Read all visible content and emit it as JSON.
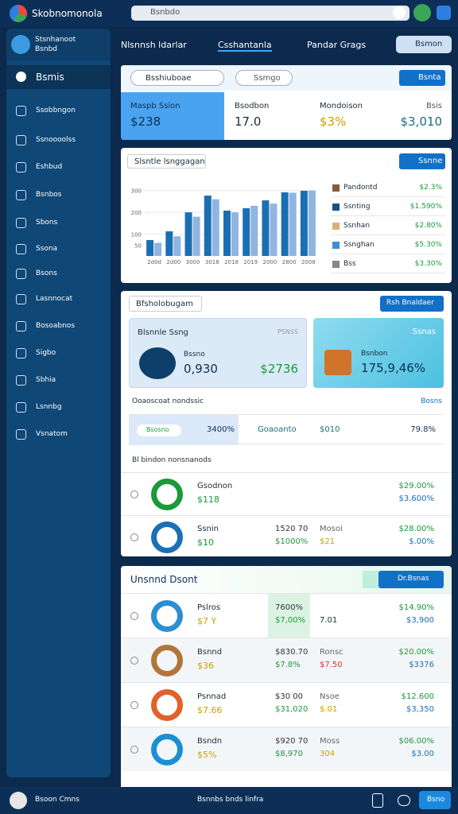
{
  "topbar": {
    "app_name": "Skobnomonola",
    "search": "Bsnbdo"
  },
  "sidebar": {
    "header": [
      "Stsnhanoot",
      "Bsnbd"
    ],
    "items": [
      "Bsmis",
      "Ssobbngon",
      "Ssnoooolss",
      "Eshbud",
      "Bsnbos",
      "Sbons",
      "Ssona",
      "Bsons",
      "Lasnnocat",
      "Bosoabnos",
      "Sigbo",
      "Sbhia",
      "Lsnnbg",
      "Vsnatom"
    ]
  },
  "tabs": {
    "items": [
      "Nlsnnsh ldarlar",
      "Csshantanla",
      "Pandar Grags"
    ],
    "button": "Bsmon"
  },
  "summary": {
    "filter": "Bsshiuboae",
    "select": "Ssmgo",
    "button": "Bsnta",
    "stats": [
      {
        "label": "Maspb Ssion",
        "value": "$238"
      },
      {
        "label": "Bsodbon",
        "value": "17.0"
      },
      {
        "label": "Mondoison",
        "value": "$3%"
      },
      {
        "label": "Bsis",
        "value": "$3,010"
      }
    ]
  },
  "chart_card": {
    "title": "Slsntle lsnggagan",
    "button": "Ssnne",
    "legend": [
      {
        "label": "Pandontd",
        "value": "$2.3%"
      },
      {
        "label": "Ssnting",
        "value": "$1.590%"
      },
      {
        "label": "Ssnhan",
        "value": "$2.80%"
      },
      {
        "label": "Ssnghan",
        "value": "$5.30%"
      },
      {
        "label": "Bss",
        "value": "$3.30%"
      }
    ]
  },
  "chart_data": {
    "type": "bar",
    "categories": [
      "2d0d",
      "2d00",
      "3000",
      "3018",
      "2018",
      "2019",
      "2000",
      "2800",
      "2008"
    ],
    "series": [
      {
        "color": "#1a6fb3",
        "values": [
          73,
          113,
          200,
          277,
          208,
          219,
          255,
          292,
          299
        ]
      },
      {
        "color": "#8fb5e0",
        "values": [
          60,
          90,
          180,
          260,
          200,
          230,
          240,
          290,
          300
        ]
      }
    ],
    "ylim": [
      0,
      350
    ],
    "yticks": [
      50,
      100,
      200,
      300
    ],
    "grid": true
  },
  "portfolio": {
    "title": "Bfsholobugam",
    "button": "Rsh Bnaldaer",
    "tiles": [
      {
        "label": "Blsnnle Ssng",
        "badge": "PSNSS",
        "sub": "Bssno",
        "value": "0,930",
        "extra": "$2736"
      },
      {
        "label": "Ssnas",
        "sub": "Bsnbon",
        "value": "175,9,46%"
      }
    ],
    "section": "Ooaoscoat nondssic",
    "section_link": "Bosns",
    "highlight": [
      "Bsosno",
      "3400%",
      "Goaoanto",
      "$010",
      "79.8%"
    ],
    "subsection": "Bl bindon nonsnanods",
    "rows": [
      {
        "name": "Gsodnon",
        "value": "$118",
        "right": [
          "$29.00%",
          "$3,600%"
        ]
      },
      {
        "name": "Ssnin",
        "value": "$10",
        "c1": [
          "1520 70",
          "$1000%"
        ],
        "c2": [
          "Mosoi",
          "$21"
        ],
        "right": [
          "$28.00%",
          "$.00%"
        ]
      }
    ]
  },
  "holdings": {
    "title": "Unsnnd Dsont",
    "button": "Dr.Bsnas",
    "rows": [
      {
        "name": "Pslros",
        "value": "$7 Y",
        "c1": [
          "7600%",
          "$7,00%"
        ],
        "c2": [
          "",
          "7.01"
        ],
        "right": [
          "$14.90%",
          "$3,900"
        ]
      },
      {
        "name": "Bsnnd",
        "value": "$36",
        "c1": [
          "$830.70",
          "$7.8%"
        ],
        "c2": [
          "Ronsc",
          "$7.50"
        ],
        "right": [
          "$20.00%",
          "$3376"
        ]
      },
      {
        "name": "Psnnad",
        "value": "$7.66",
        "c1": [
          "$30 00",
          "$31,020"
        ],
        "c2": [
          "Nsoe",
          "$.01"
        ],
        "right": [
          "$12.600",
          "$3,350"
        ]
      },
      {
        "name": "Bsndn",
        "value": "$5%",
        "c1": [
          "$920 70",
          "$8,970"
        ],
        "c2": [
          "Moss",
          "304"
        ],
        "right": [
          "$06.00%",
          "$3.00"
        ]
      }
    ]
  },
  "footer": {
    "user": "Bsoon Cmns",
    "center": "Bsnnbs bnds linfra",
    "button": "Bsno"
  }
}
